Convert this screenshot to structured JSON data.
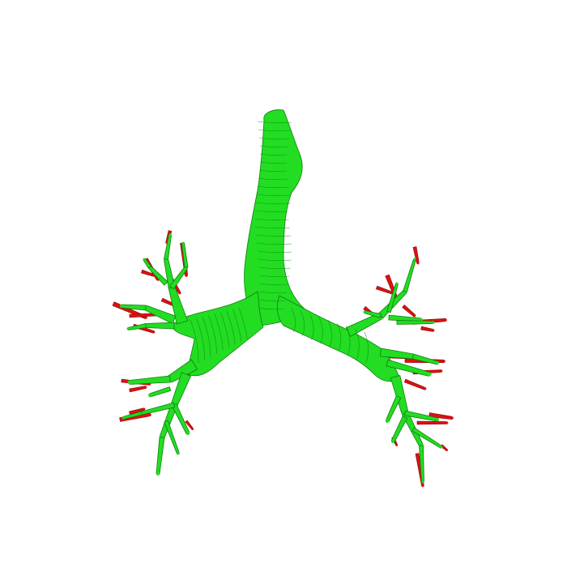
{
  "scene": {
    "background_color": "#ffffff",
    "subject": "bronchial-tree",
    "colors": {
      "airway": "#22dd22",
      "airway_edge": "#0f7f0f",
      "contour": "#108a10",
      "segmented_tip": "#dd1111",
      "segmented_tip_edge": "#8a0000"
    }
  }
}
